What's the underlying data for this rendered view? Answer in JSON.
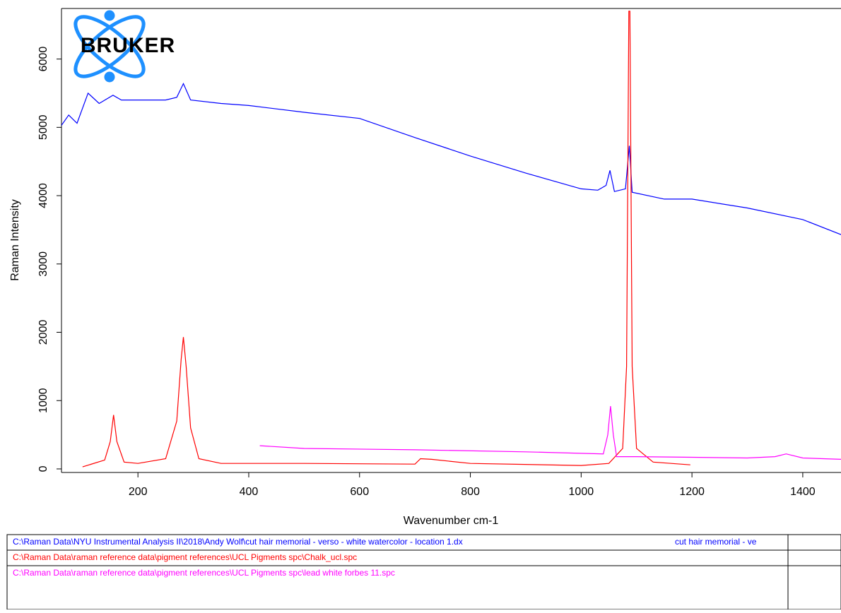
{
  "chart_data": {
    "type": "line",
    "xlabel": "Wavenumber cm-1",
    "ylabel": "Raman Intensity",
    "logo": "BRUKER",
    "legend_note": "cut hair memorial - ve",
    "xlim": [
      62,
      1469
    ],
    "ylim": [
      -52,
      6740
    ],
    "xticks": [
      200,
      400,
      600,
      800,
      1000,
      1200,
      1400
    ],
    "yticks": [
      0,
      1000,
      2000,
      3000,
      4000,
      5000,
      6000
    ],
    "series": [
      {
        "name": "C:\\Raman Data\\NYU Instrumental Analysis II\\2018\\Andy Wolf\\cut hair memorial - verso - white watercolor - location 1.dx",
        "color": "#0000ff",
        "x": [
          62,
          75,
          90,
          110,
          130,
          155,
          170,
          250,
          270,
          282,
          295,
          350,
          400,
          500,
          600,
          700,
          800,
          900,
          1000,
          1030,
          1045,
          1052,
          1060,
          1080,
          1087,
          1092,
          1150,
          1200,
          1300,
          1400,
          1469
        ],
        "values": [
          5030,
          5180,
          5060,
          5500,
          5350,
          5470,
          5400,
          5400,
          5440,
          5640,
          5400,
          5350,
          5320,
          5220,
          5130,
          4850,
          4580,
          4330,
          4100,
          4080,
          4150,
          4370,
          4060,
          4100,
          4730,
          4050,
          3950,
          3950,
          3820,
          3650,
          3430
        ]
      },
      {
        "name": "C:\\Raman Data\\raman reference data\\pigment references\\UCL Pigments spc\\Chalk_ucl.spc",
        "color": "#ff0000",
        "x": [
          100,
          140,
          150,
          156,
          162,
          175,
          200,
          250,
          270,
          278,
          282,
          287,
          295,
          310,
          350,
          500,
          700,
          710,
          730,
          800,
          1000,
          1050,
          1075,
          1082,
          1086,
          1088,
          1092,
          1100,
          1130,
          1197
        ],
        "values": [
          30,
          130,
          400,
          790,
          400,
          100,
          80,
          150,
          700,
          1600,
          1930,
          1500,
          600,
          150,
          80,
          80,
          70,
          150,
          140,
          80,
          50,
          80,
          300,
          1500,
          6700,
          6700,
          1500,
          300,
          100,
          60
        ]
      },
      {
        "name": "C:\\Raman Data\\raman reference data\\pigment references\\UCL Pigments spc\\lead white forbes 11.spc",
        "color": "#ff00ff",
        "x": [
          420,
          500,
          700,
          900,
          1040,
          1048,
          1053,
          1058,
          1064,
          1100,
          1200,
          1300,
          1350,
          1370,
          1400,
          1469
        ],
        "values": [
          340,
          300,
          280,
          250,
          220,
          500,
          920,
          500,
          180,
          180,
          170,
          160,
          180,
          220,
          160,
          140
        ]
      }
    ]
  }
}
